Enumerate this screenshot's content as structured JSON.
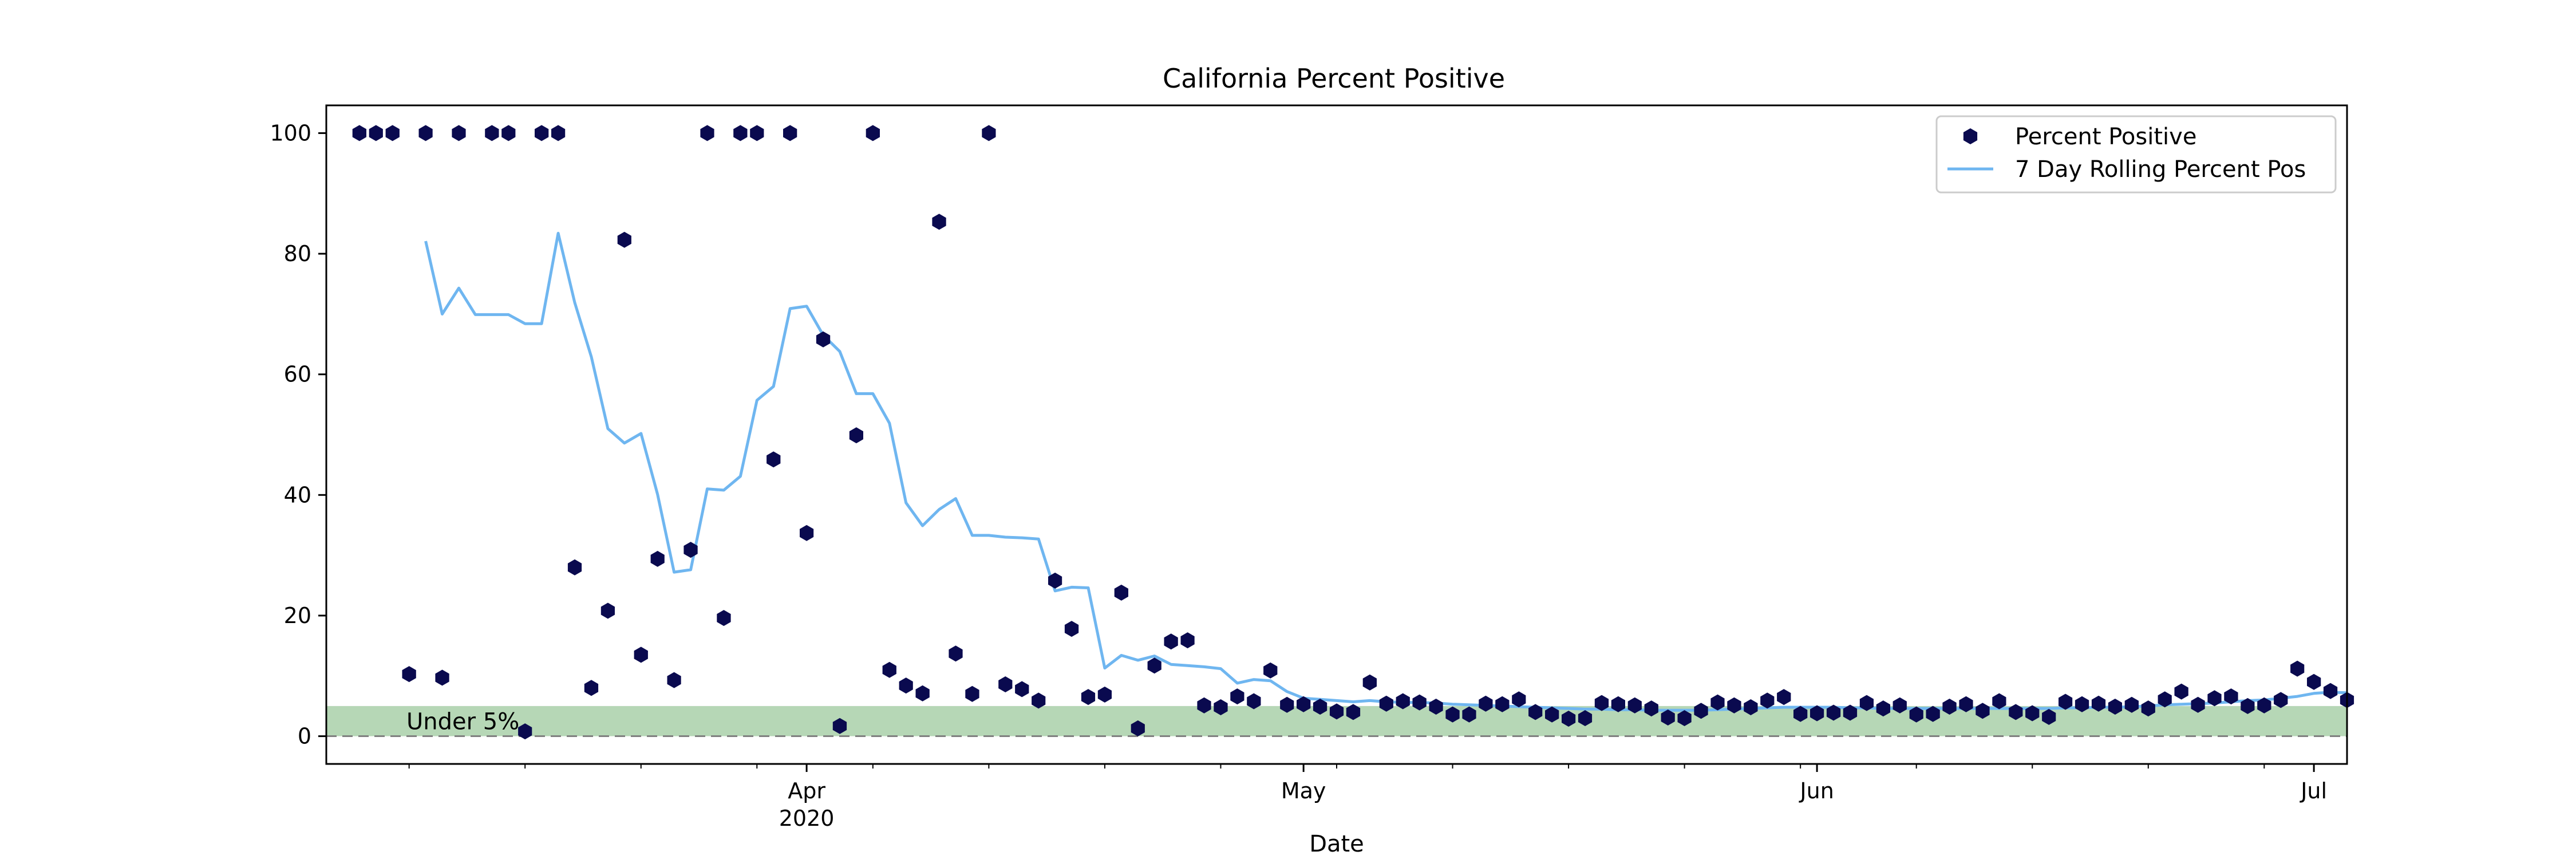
{
  "chart_data": {
    "type": "scatter",
    "title": "California Percent Positive",
    "xlabel": "Date",
    "ylabel": "",
    "xlim": [
      "2020-03-03",
      "2020-07-03"
    ],
    "ylim": [
      -4.6,
      104.6
    ],
    "grid": false,
    "legend_position": "top-right",
    "x_ticks": [
      {
        "date": "2020-04-01",
        "label": "Apr",
        "sublabel": "2020"
      },
      {
        "date": "2020-05-01",
        "label": "May",
        "sublabel": ""
      },
      {
        "date": "2020-06-01",
        "label": "Jun",
        "sublabel": ""
      },
      {
        "date": "2020-07-01",
        "label": "Jul",
        "sublabel": ""
      }
    ],
    "y_ticks": [
      0,
      20,
      40,
      60,
      80,
      100
    ],
    "threshold_band": {
      "from": 0,
      "to": 5,
      "label": "Under 5%",
      "color": "#2e8b2e"
    },
    "baseline": {
      "y": 0,
      "style": "dashed",
      "color": "#808080"
    },
    "series": [
      {
        "name": "Percent Positive",
        "kind": "points",
        "color": "#0a0a4f",
        "points": [
          [
            "2020-03-05",
            100
          ],
          [
            "2020-03-06",
            100
          ],
          [
            "2020-03-07",
            100
          ],
          [
            "2020-03-08",
            10.3
          ],
          [
            "2020-03-09",
            100
          ],
          [
            "2020-03-10",
            9.7
          ],
          [
            "2020-03-11",
            100
          ],
          [
            "2020-03-13",
            100
          ],
          [
            "2020-03-14",
            100
          ],
          [
            "2020-03-15",
            0.8
          ],
          [
            "2020-03-16",
            100
          ],
          [
            "2020-03-17",
            100
          ],
          [
            "2020-03-18",
            28
          ],
          [
            "2020-03-19",
            8
          ],
          [
            "2020-03-20",
            20.8
          ],
          [
            "2020-03-21",
            82.3
          ],
          [
            "2020-03-22",
            13.5
          ],
          [
            "2020-03-23",
            29.4
          ],
          [
            "2020-03-24",
            9.3
          ],
          [
            "2020-03-25",
            30.9
          ],
          [
            "2020-03-26",
            100
          ],
          [
            "2020-03-27",
            19.6
          ],
          [
            "2020-03-28",
            100
          ],
          [
            "2020-03-29",
            100
          ],
          [
            "2020-03-30",
            45.9
          ],
          [
            "2020-03-31",
            100
          ],
          [
            "2020-04-01",
            33.7
          ],
          [
            "2020-04-02",
            65.8
          ],
          [
            "2020-04-03",
            1.7
          ],
          [
            "2020-04-04",
            49.9
          ],
          [
            "2020-04-05",
            100
          ],
          [
            "2020-04-06",
            11
          ],
          [
            "2020-04-07",
            8.4
          ],
          [
            "2020-04-08",
            7.1
          ],
          [
            "2020-04-09",
            85.3
          ],
          [
            "2020-04-10",
            13.7
          ],
          [
            "2020-04-11",
            7
          ],
          [
            "2020-04-12",
            100
          ],
          [
            "2020-04-13",
            8.6
          ],
          [
            "2020-04-14",
            7.8
          ],
          [
            "2020-04-15",
            5.9
          ],
          [
            "2020-04-16",
            25.8
          ],
          [
            "2020-04-17",
            17.8
          ],
          [
            "2020-04-18",
            6.5
          ],
          [
            "2020-04-19",
            6.9
          ],
          [
            "2020-04-20",
            23.8
          ],
          [
            "2020-04-21",
            1.3
          ],
          [
            "2020-04-22",
            11.7
          ],
          [
            "2020-04-23",
            15.7
          ],
          [
            "2020-04-24",
            15.9
          ],
          [
            "2020-04-25",
            5.1
          ],
          [
            "2020-04-26",
            4.8
          ],
          [
            "2020-04-27",
            6.6
          ],
          [
            "2020-04-28",
            5.8
          ],
          [
            "2020-04-29",
            10.9
          ],
          [
            "2020-04-30",
            5.2
          ],
          [
            "2020-05-01",
            5.3
          ],
          [
            "2020-05-02",
            4.9
          ],
          [
            "2020-05-03",
            4.1
          ],
          [
            "2020-05-04",
            4
          ],
          [
            "2020-05-05",
            8.9
          ],
          [
            "2020-05-06",
            5.4
          ],
          [
            "2020-05-07",
            5.8
          ],
          [
            "2020-05-08",
            5.6
          ],
          [
            "2020-05-09",
            4.9
          ],
          [
            "2020-05-10",
            3.6
          ],
          [
            "2020-05-11",
            3.6
          ],
          [
            "2020-05-12",
            5.4
          ],
          [
            "2020-05-13",
            5.3
          ],
          [
            "2020-05-14",
            6.1
          ],
          [
            "2020-05-15",
            4
          ],
          [
            "2020-05-16",
            3.6
          ],
          [
            "2020-05-17",
            2.9
          ],
          [
            "2020-05-18",
            3
          ],
          [
            "2020-05-19",
            5.5
          ],
          [
            "2020-05-20",
            5.3
          ],
          [
            "2020-05-21",
            5.1
          ],
          [
            "2020-05-22",
            4.6
          ],
          [
            "2020-05-23",
            3.1
          ],
          [
            "2020-05-24",
            3
          ],
          [
            "2020-05-25",
            4.2
          ],
          [
            "2020-05-26",
            5.6
          ],
          [
            "2020-05-27",
            5.1
          ],
          [
            "2020-05-28",
            4.8
          ],
          [
            "2020-05-29",
            5.9
          ],
          [
            "2020-05-30",
            6.5
          ],
          [
            "2020-05-31",
            3.7
          ],
          [
            "2020-06-01",
            3.8
          ],
          [
            "2020-06-02",
            3.9
          ],
          [
            "2020-06-03",
            3.9
          ],
          [
            "2020-06-04",
            5.5
          ],
          [
            "2020-06-05",
            4.6
          ],
          [
            "2020-06-06",
            5.1
          ],
          [
            "2020-06-07",
            3.6
          ],
          [
            "2020-06-08",
            3.7
          ],
          [
            "2020-06-09",
            4.9
          ],
          [
            "2020-06-10",
            5.3
          ],
          [
            "2020-06-11",
            4.2
          ],
          [
            "2020-06-12",
            5.8
          ],
          [
            "2020-06-13",
            4
          ],
          [
            "2020-06-14",
            3.8
          ],
          [
            "2020-06-15",
            3.2
          ],
          [
            "2020-06-16",
            5.7
          ],
          [
            "2020-06-17",
            5.3
          ],
          [
            "2020-06-18",
            5.4
          ],
          [
            "2020-06-19",
            4.9
          ],
          [
            "2020-06-20",
            5.2
          ],
          [
            "2020-06-21",
            4.6
          ],
          [
            "2020-06-22",
            6.1
          ],
          [
            "2020-06-23",
            7.4
          ],
          [
            "2020-06-24",
            5.2
          ],
          [
            "2020-06-25",
            6.3
          ],
          [
            "2020-06-26",
            6.6
          ],
          [
            "2020-06-27",
            5
          ],
          [
            "2020-06-28",
            5.1
          ],
          [
            "2020-06-29",
            6
          ],
          [
            "2020-06-30",
            11.2
          ],
          [
            "2020-07-01",
            9
          ],
          [
            "2020-07-02",
            7.5
          ],
          [
            "2020-07-03",
            6
          ]
        ]
      },
      {
        "name": "7 Day Rolling Percent Pos",
        "kind": "line",
        "color": "#6fb6f0",
        "points": [
          [
            "2020-03-09",
            82.1
          ],
          [
            "2020-03-10",
            70
          ],
          [
            "2020-03-11",
            74.3
          ],
          [
            "2020-03-12",
            69.9
          ],
          [
            "2020-03-13",
            69.9
          ],
          [
            "2020-03-14",
            69.9
          ],
          [
            "2020-03-15",
            68.4
          ],
          [
            "2020-03-16",
            68.4
          ],
          [
            "2020-03-17",
            83.4
          ],
          [
            "2020-03-18",
            71.9
          ],
          [
            "2020-03-19",
            62.9
          ],
          [
            "2020-03-20",
            51
          ],
          [
            "2020-03-21",
            48.6
          ],
          [
            "2020-03-22",
            50.2
          ],
          [
            "2020-03-23",
            40.1
          ],
          [
            "2020-03-24",
            27.2
          ],
          [
            "2020-03-25",
            27.6
          ],
          [
            "2020-03-26",
            41
          ],
          [
            "2020-03-27",
            40.8
          ],
          [
            "2020-03-28",
            43.1
          ],
          [
            "2020-03-29",
            55.7
          ],
          [
            "2020-03-30",
            58
          ],
          [
            "2020-03-31",
            70.9
          ],
          [
            "2020-04-01",
            71.3
          ],
          [
            "2020-04-02",
            66.5
          ],
          [
            "2020-04-03",
            63.8
          ],
          [
            "2020-04-04",
            56.8
          ],
          [
            "2020-04-05",
            56.8
          ],
          [
            "2020-04-06",
            51.9
          ],
          [
            "2020-04-07",
            38.7
          ],
          [
            "2020-04-08",
            34.9
          ],
          [
            "2020-04-09",
            37.6
          ],
          [
            "2020-04-10",
            39.4
          ],
          [
            "2020-04-11",
            33.3
          ],
          [
            "2020-04-12",
            33.3
          ],
          [
            "2020-04-13",
            33
          ],
          [
            "2020-04-14",
            32.9
          ],
          [
            "2020-04-15",
            32.7
          ],
          [
            "2020-04-16",
            24.1
          ],
          [
            "2020-04-17",
            24.7
          ],
          [
            "2020-04-18",
            24.6
          ],
          [
            "2020-04-19",
            11.3
          ],
          [
            "2020-04-20",
            13.4
          ],
          [
            "2020-04-21",
            12.6
          ],
          [
            "2020-04-22",
            13.3
          ],
          [
            "2020-04-23",
            11.9
          ],
          [
            "2020-04-24",
            11.7
          ],
          [
            "2020-04-25",
            11.5
          ],
          [
            "2020-04-26",
            11.2
          ],
          [
            "2020-04-27",
            8.8
          ],
          [
            "2020-04-28",
            9.4
          ],
          [
            "2020-04-29",
            9.2
          ],
          [
            "2020-04-30",
            7.4
          ],
          [
            "2020-05-01",
            6.3
          ],
          [
            "2020-05-02",
            6.1
          ],
          [
            "2020-05-03",
            5.9
          ],
          [
            "2020-05-04",
            5.7
          ],
          [
            "2020-05-05",
            5.9
          ],
          [
            "2020-05-06",
            5.7
          ],
          [
            "2020-05-07",
            5.6
          ],
          [
            "2020-05-08",
            5.6
          ],
          [
            "2020-05-09",
            5.5
          ],
          [
            "2020-05-10",
            5.3
          ],
          [
            "2020-05-11",
            5.2
          ],
          [
            "2020-05-12",
            5.1
          ],
          [
            "2020-05-13",
            5
          ],
          [
            "2020-05-14",
            4.9
          ],
          [
            "2020-05-15",
            4.8
          ],
          [
            "2020-05-16",
            4.7
          ],
          [
            "2020-05-17",
            4.6
          ],
          [
            "2020-05-18",
            4.5
          ],
          [
            "2020-05-19",
            4.5
          ],
          [
            "2020-05-20",
            4.4
          ],
          [
            "2020-05-21",
            4.4
          ],
          [
            "2020-05-22",
            4.3
          ],
          [
            "2020-05-23",
            4.3
          ],
          [
            "2020-05-24",
            4.3
          ],
          [
            "2020-05-25",
            4.3
          ],
          [
            "2020-05-26",
            4.4
          ],
          [
            "2020-05-27",
            4.5
          ],
          [
            "2020-05-28",
            4.6
          ],
          [
            "2020-05-29",
            4.7
          ],
          [
            "2020-05-30",
            4.8
          ],
          [
            "2020-05-31",
            4.8
          ],
          [
            "2020-06-01",
            4.8
          ],
          [
            "2020-06-02",
            4.8
          ],
          [
            "2020-06-03",
            4.7
          ],
          [
            "2020-06-04",
            4.7
          ],
          [
            "2020-06-05",
            4.6
          ],
          [
            "2020-06-06",
            4.6
          ],
          [
            "2020-06-07",
            4.6
          ],
          [
            "2020-06-08",
            4.6
          ],
          [
            "2020-06-09",
            4.6
          ],
          [
            "2020-06-10",
            4.6
          ],
          [
            "2020-06-11",
            4.6
          ],
          [
            "2020-06-12",
            4.6
          ],
          [
            "2020-06-13",
            4.6
          ],
          [
            "2020-06-14",
            4.6
          ],
          [
            "2020-06-15",
            4.6
          ],
          [
            "2020-06-16",
            4.7
          ],
          [
            "2020-06-17",
            4.7
          ],
          [
            "2020-06-18",
            4.8
          ],
          [
            "2020-06-19",
            4.8
          ],
          [
            "2020-06-20",
            4.9
          ],
          [
            "2020-06-21",
            5
          ],
          [
            "2020-06-22",
            5.2
          ],
          [
            "2020-06-23",
            5.3
          ],
          [
            "2020-06-24",
            5.4
          ],
          [
            "2020-06-25",
            5.5
          ],
          [
            "2020-06-26",
            5.7
          ],
          [
            "2020-06-27",
            5.9
          ],
          [
            "2020-06-28",
            6
          ],
          [
            "2020-06-29",
            6.3
          ],
          [
            "2020-06-30",
            6.6
          ],
          [
            "2020-07-01",
            7.1
          ],
          [
            "2020-07-02",
            7.3
          ],
          [
            "2020-07-03",
            7.2
          ]
        ]
      }
    ]
  }
}
